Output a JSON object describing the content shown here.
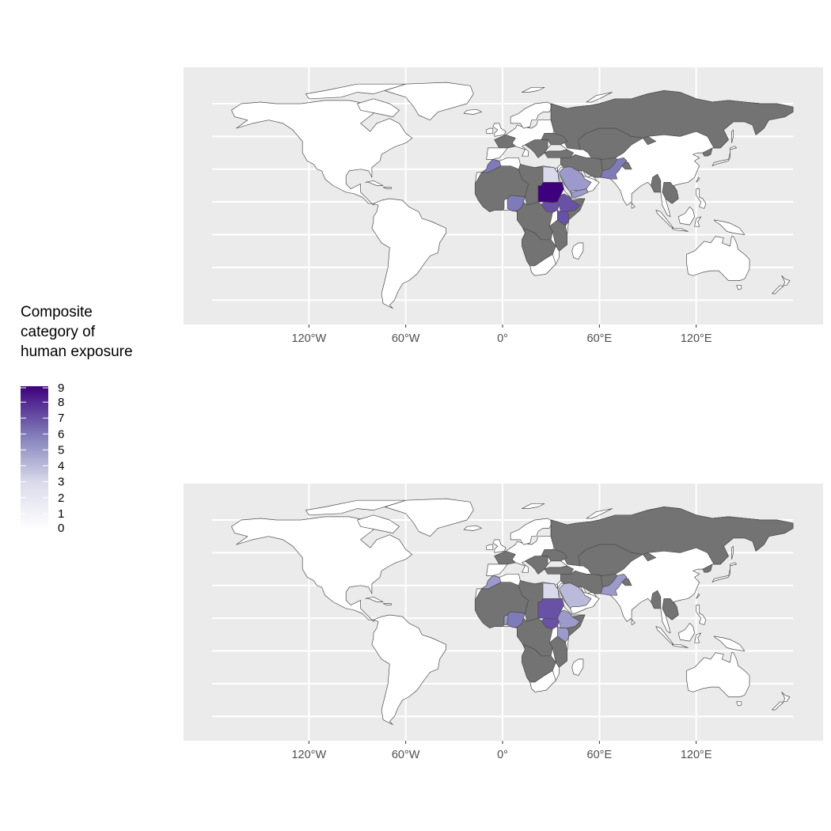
{
  "legend": {
    "title_lines": [
      "Composite",
      "category of",
      "human exposure"
    ],
    "scale_min": 0,
    "scale_max": 9,
    "tick_labels": [
      "9",
      "8",
      "7",
      "6",
      "5",
      "4",
      "3",
      "2",
      "1",
      "0"
    ],
    "color_low": "#ffffff",
    "color_high": "#3f007d"
  },
  "colors": {
    "panel_background": "#ebebeb",
    "grid_line": "#ffffff",
    "no_data_fill": "#ffffff",
    "excluded_fill": "#737373",
    "border": "#4d4d4d",
    "axis_text": "#4d4d4d"
  },
  "maps": [
    {
      "name": "map-top",
      "x_axis_labels": [
        "120°W",
        "60°W",
        "0°",
        "60°E",
        "120°E"
      ],
      "x_axis_values": [
        -120,
        -60,
        0,
        60,
        120
      ],
      "regions": [
        {
          "name": "sudan",
          "value": 9
        },
        {
          "name": "ethiopia",
          "value": 7
        },
        {
          "name": "south-sudan",
          "value": 7
        },
        {
          "name": "kenya",
          "value": 7
        },
        {
          "name": "nigeria",
          "value": 6
        },
        {
          "name": "pakistan",
          "value": 6
        },
        {
          "name": "morocco",
          "value": 6
        },
        {
          "name": "yemen",
          "value": 5
        },
        {
          "name": "saudi-arabia",
          "value": 5
        },
        {
          "name": "egypt",
          "value": 3
        }
      ]
    },
    {
      "name": "map-bottom",
      "x_axis_labels": [
        "120°W",
        "60°W",
        "0°",
        "60°E",
        "120°E"
      ],
      "x_axis_values": [
        -120,
        -60,
        0,
        60,
        120
      ],
      "regions": [
        {
          "name": "sudan",
          "value": 7
        },
        {
          "name": "south-sudan",
          "value": 7
        },
        {
          "name": "nigeria",
          "value": 6
        },
        {
          "name": "ethiopia",
          "value": 5
        },
        {
          "name": "kenya",
          "value": 5
        },
        {
          "name": "pakistan",
          "value": 5
        },
        {
          "name": "morocco",
          "value": 5
        },
        {
          "name": "benin",
          "value": 5
        },
        {
          "name": "saudi-arabia",
          "value": 4
        },
        {
          "name": "egypt",
          "value": 3
        }
      ]
    }
  ]
}
